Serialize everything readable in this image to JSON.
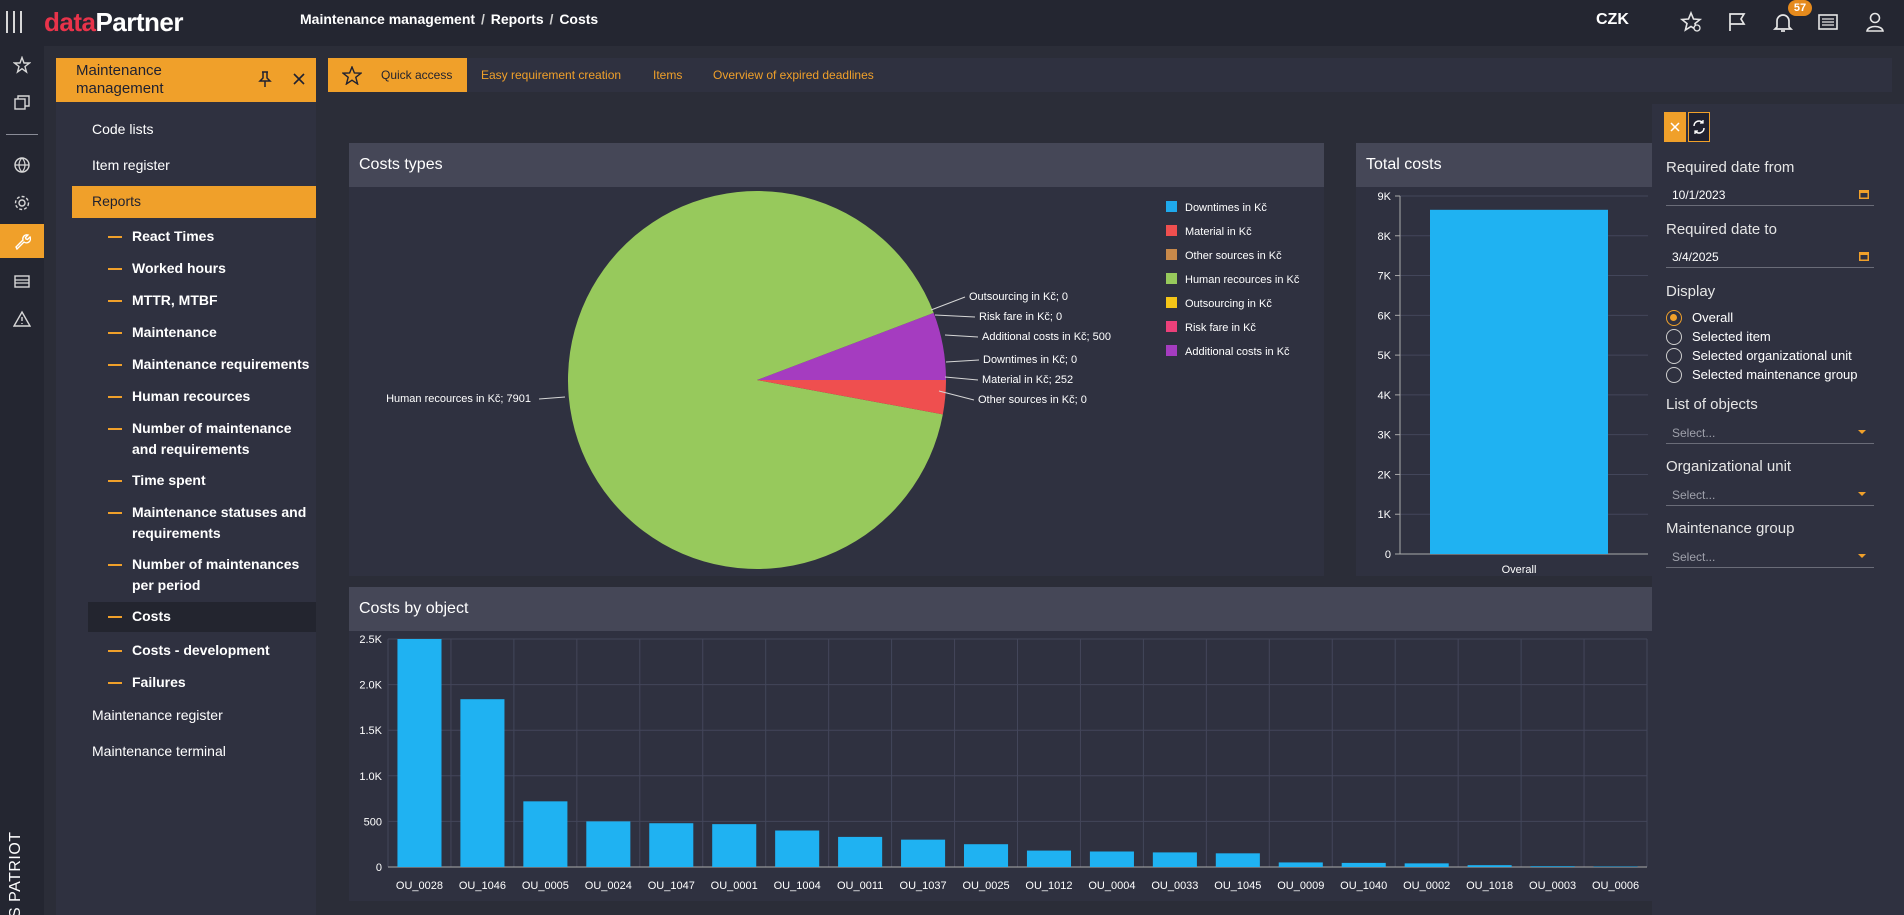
{
  "app": {
    "logo_part1": "data",
    "logo_part2": "Partner",
    "brand": "MES PATRIOT",
    "currency": "CZK",
    "notifications_count": "57"
  },
  "breadcrumb": {
    "items": [
      "Maintenance management",
      "Reports",
      "Costs"
    ],
    "separator": "/"
  },
  "icons": {
    "topbar": [
      "star-settings-icon",
      "flag-icon",
      "bell-icon",
      "list-icon",
      "user-icon"
    ],
    "rail": [
      "star-icon",
      "windows-icon",
      "globe-icon",
      "gear-icon",
      "wrench-icon",
      "machine-icon",
      "warning-icon"
    ]
  },
  "sidebar": {
    "title": "Maintenance management",
    "items": [
      "Code lists",
      "Item register",
      "Reports",
      "Maintenance register",
      "Maintenance terminal"
    ],
    "selected": "Reports",
    "report_items": [
      "React Times",
      "Worked hours",
      "MTTR, MTBF",
      "Maintenance",
      "Maintenance requirements",
      "Human recources",
      "Number of maintenance and requirements",
      "Time spent",
      "Maintenance statuses and requirements",
      "Number of maintenances per period",
      "Costs",
      "Costs - development",
      "Failures"
    ],
    "current_report": "Costs"
  },
  "tabs": [
    "Quick access",
    "Easy requirement creation",
    "Items",
    "Overview of expired deadlines"
  ],
  "active_tab": "Quick access",
  "panels": {
    "costs_types": "Costs types",
    "total_costs": "Total costs",
    "costs_by_object": "Costs by object"
  },
  "colors": {
    "accent": "#f0a02a",
    "bar": "#1fb2f2"
  },
  "chart_data": [
    {
      "type": "pie",
      "title": "Costs types",
      "legend_position": "right",
      "legend": [
        {
          "name": "Downtimes in Kč",
          "color": "#1fa9ec"
        },
        {
          "name": "Material in Kč",
          "color": "#ef4f4f"
        },
        {
          "name": "Other sources in Kč",
          "color": "#c8894a"
        },
        {
          "name": "Human recources in Kč",
          "color": "#97c95c"
        },
        {
          "name": "Outsourcing in Kč",
          "color": "#f5c518"
        },
        {
          "name": "Risk fare in Kč",
          "color": "#ec407a"
        },
        {
          "name": "Additional costs in Kč",
          "color": "#a53cc0"
        }
      ],
      "slices": [
        {
          "name": "Human recources in Kč",
          "value": 7901,
          "color": "#97c95c",
          "label": "Human recources in Kč; 7901"
        },
        {
          "name": "Outsourcing in Kč",
          "value": 0,
          "color": "#f5c518",
          "label": "Outsourcing in Kč; 0"
        },
        {
          "name": "Risk fare in Kč",
          "value": 0,
          "color": "#ec407a",
          "label": "Risk fare in Kč; 0"
        },
        {
          "name": "Additional costs in Kč",
          "value": 500,
          "color": "#a53cc0",
          "label": "Additional costs in Kč; 500"
        },
        {
          "name": "Downtimes in Kč",
          "value": 0,
          "color": "#1fa9ec",
          "label": "Downtimes in Kč; 0"
        },
        {
          "name": "Material in Kč",
          "value": 252,
          "color": "#ef4f4f",
          "label": "Material in Kč; 252"
        },
        {
          "name": "Other sources in Kč",
          "value": 0,
          "color": "#c8894a",
          "label": "Other sources in Kč; 0"
        }
      ]
    },
    {
      "type": "bar",
      "title": "Total costs",
      "categories": [
        "Overall"
      ],
      "values": [
        8653
      ],
      "ylim": [
        0,
        9000
      ],
      "yticks": [
        "0",
        "1K",
        "2K",
        "3K",
        "4K",
        "5K",
        "6K",
        "7K",
        "8K",
        "9K"
      ],
      "grid": true
    },
    {
      "type": "bar",
      "title": "Costs by object",
      "categories": [
        "OU_0028",
        "OU_1046",
        "OU_0005",
        "OU_0024",
        "OU_1047",
        "OU_0001",
        "OU_1004",
        "OU_0011",
        "OU_1037",
        "OU_0025",
        "OU_1012",
        "OU_0004",
        "OU_0033",
        "OU_1045",
        "OU_0009",
        "OU_1040",
        "OU_0002",
        "OU_1018",
        "OU_0003",
        "OU_0006"
      ],
      "values": [
        2500,
        1840,
        720,
        500,
        480,
        470,
        400,
        330,
        300,
        250,
        180,
        170,
        160,
        150,
        50,
        45,
        40,
        20,
        8,
        5
      ],
      "ylim": [
        0,
        2500
      ],
      "yticks": [
        "0",
        "500",
        "1.0K",
        "1.5K",
        "2.0K",
        "2.5K"
      ],
      "grid": true
    }
  ],
  "filters": {
    "date_from_label": "Required date from",
    "date_from_value": "10/1/2023",
    "date_to_label": "Required date to",
    "date_to_value": "3/4/2025",
    "display_label": "Display",
    "display_options": [
      "Overall",
      "Selected item",
      "Selected organizational unit",
      "Selected maintenance group"
    ],
    "display_selected": "Overall",
    "objects_label": "List of objects",
    "objects_placeholder": "Select...",
    "org_label": "Organizational unit",
    "org_placeholder": "Select...",
    "group_label": "Maintenance group",
    "group_placeholder": "Select..."
  }
}
